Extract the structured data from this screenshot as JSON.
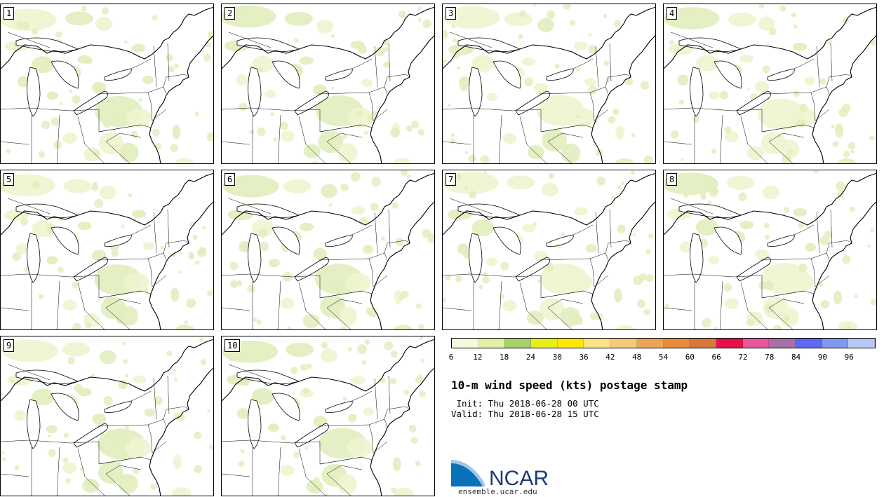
{
  "panels": [
    "1",
    "2",
    "3",
    "4",
    "5",
    "6",
    "7",
    "8",
    "9",
    "10"
  ],
  "colorbar": {
    "colors": [
      "#f4f8dc",
      "#e2f1a8",
      "#a8d068",
      "#e4ef1c",
      "#ffe800",
      "#fbe488",
      "#f4cc78",
      "#eca458",
      "#e88c3c",
      "#d8783c",
      "#e8104c",
      "#e8589c",
      "#a870a8",
      "#6068f0",
      "#8098f0",
      "#b8c8f4"
    ],
    "ticks": [
      "6",
      "12",
      "18",
      "24",
      "30",
      "36",
      "42",
      "48",
      "54",
      "60",
      "66",
      "72",
      "78",
      "84",
      "90",
      "96"
    ]
  },
  "title": "10-m wind speed (kts) postage stamp",
  "init": " Init: Thu 2018-06-28 00 UTC",
  "valid": "Valid: Thu 2018-06-28 15 UTC",
  "logo": {
    "text": "NCAR",
    "url": "ensemble.ucar.edu",
    "colors": [
      "#0a70b8",
      "#9fc8e8"
    ]
  },
  "map": {
    "fill_color": "#eef5cf",
    "fill_color_dark": "#e1eebc",
    "line_color": "#000000"
  }
}
